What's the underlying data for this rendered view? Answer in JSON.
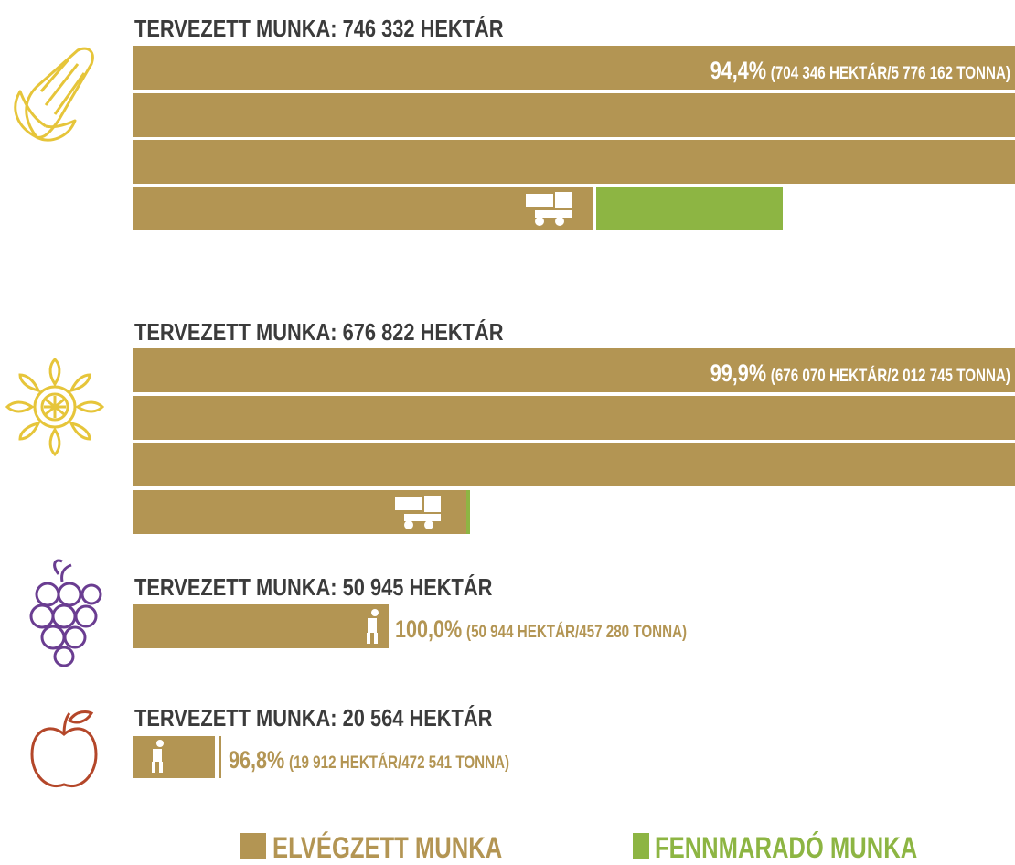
{
  "sections": [
    {
      "title": "TERVEZETT MUNKA: 746 332 HEKTÁR",
      "percent": "94,4%",
      "detail": "(704 346 HEKTÁR/5 776 162 TONNA)"
    },
    {
      "title": "TERVEZETT MUNKA: 676 822 HEKTÁR",
      "percent": "99,9%",
      "detail": "(676 070 HEKTÁR/2 012 745 TONNA)"
    },
    {
      "title": "TERVEZETT MUNKA: 50 945 HEKTÁR",
      "percent": "100,0%",
      "detail": "(50 944 HEKTÁR/457 280 TONNA)"
    },
    {
      "title": "TERVEZETT MUNKA: 20 564 HEKTÁR",
      "percent": "96,8%",
      "detail": "(19 912 HEKTÁR/472 541 TONNA)"
    }
  ],
  "legend": [
    "ELVÉGZETT MUNKA",
    "FENNMARADÓ MUNKA"
  ]
}
